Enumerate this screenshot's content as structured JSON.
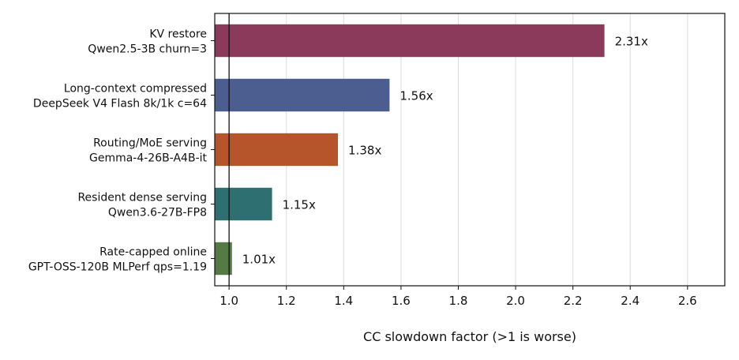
{
  "chart_data": {
    "type": "bar",
    "orientation": "horizontal",
    "title": "",
    "xlabel": "CC slowdown factor (>1 is worse)",
    "ylabel": "",
    "xlim": [
      0.95,
      2.73
    ],
    "xticks": [
      1.0,
      1.2,
      1.4,
      1.6,
      1.8,
      2.0,
      2.2,
      2.4,
      2.6
    ],
    "xtick_labels": [
      "1.0",
      "1.2",
      "1.4",
      "1.6",
      "1.8",
      "2.0",
      "2.2",
      "2.4",
      "2.6"
    ],
    "reference_line": 1.0,
    "grid": "vertical",
    "legend": "none",
    "categories": [
      [
        "KV restore",
        "Qwen2.5-3B churn=3"
      ],
      [
        "Long-context compressed",
        "DeepSeek V4 Flash 8k/1k c=64"
      ],
      [
        "Routing/MoE serving",
        "Gemma-4-26B-A4B-it"
      ],
      [
        "Resident dense serving",
        "Qwen3.6-27B-FP8"
      ],
      [
        "Rate-capped online",
        "GPT-OSS-120B MLPerf qps=1.19"
      ]
    ],
    "values": [
      2.31,
      1.56,
      1.38,
      1.15,
      1.01
    ],
    "value_labels": [
      "2.31x",
      "1.56x",
      "1.38x",
      "1.15x",
      "1.01x"
    ],
    "colors": [
      "#8b3a5c",
      "#4c5e8f",
      "#b6552c",
      "#2e6f72",
      "#557b45"
    ]
  }
}
